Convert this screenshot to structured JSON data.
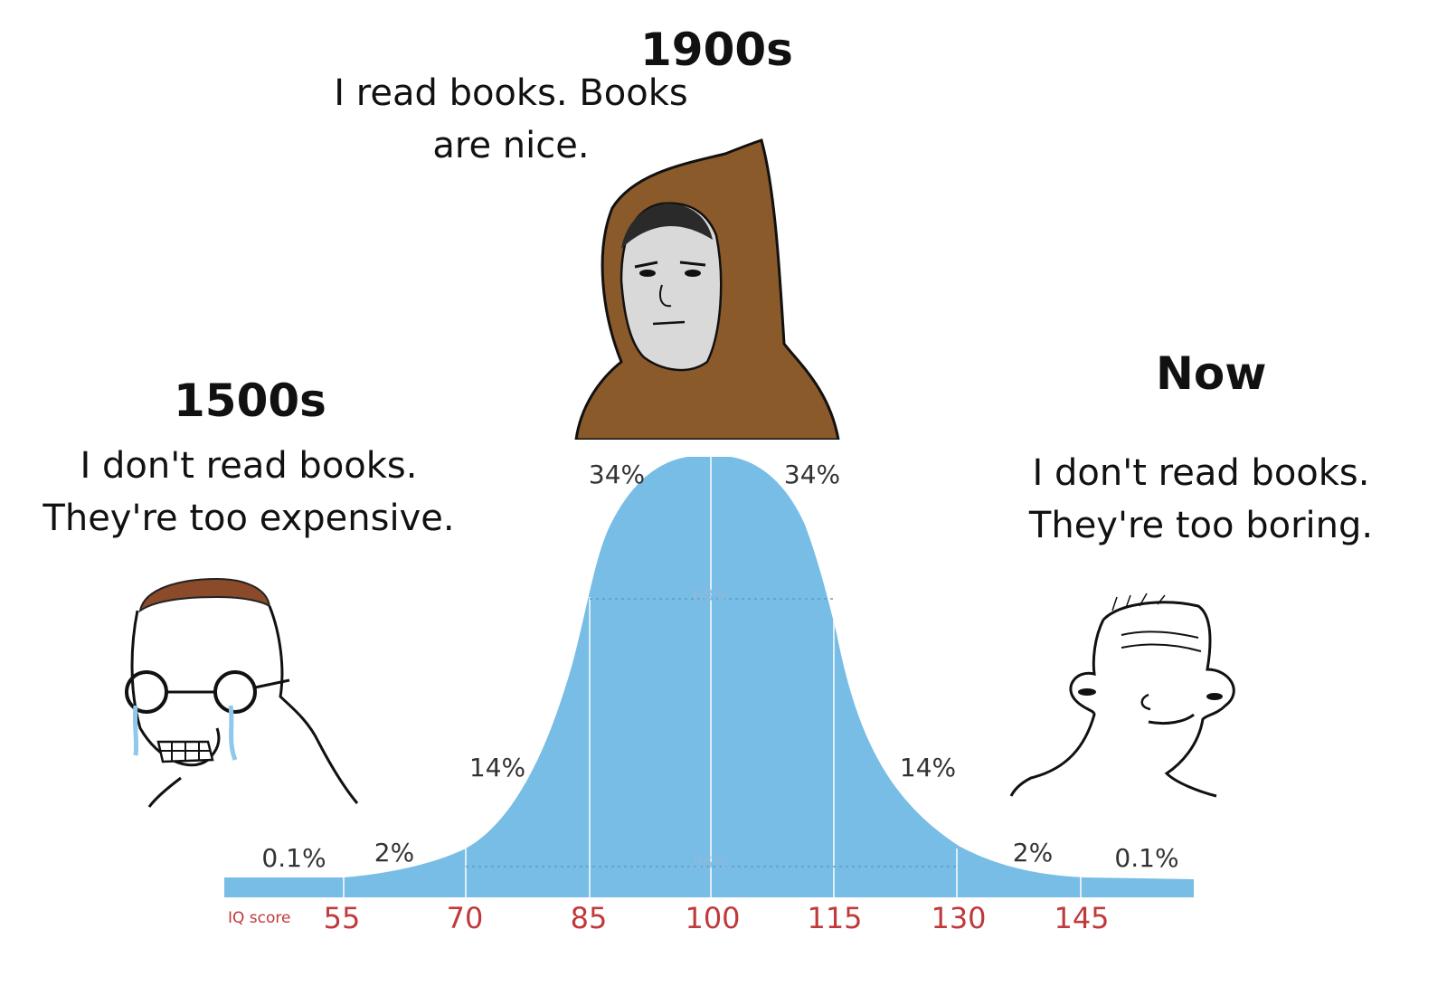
{
  "panels": {
    "left": {
      "era": "1500s",
      "quote_line1": "I don't read books.",
      "quote_line2": "They're too expensive."
    },
    "middle": {
      "era": "1900s",
      "quote_line1": "I read books. Books",
      "quote_line2": "are nice."
    },
    "right": {
      "era": "Now",
      "quote_line1": "I don't read books.",
      "quote_line2": "They're too boring."
    }
  },
  "curve": {
    "axis_label": "IQ score",
    "ticks": [
      "55",
      "70",
      "85",
      "100",
      "115",
      "130",
      "145"
    ],
    "percents": {
      "far_left": "0.1%",
      "left_2": "2%",
      "left_14": "14%",
      "left_34": "34%",
      "right_34": "34%",
      "right_14": "14%",
      "right_2": "2%",
      "far_right": "0.1%",
      "center_68": "68%",
      "center_95": "95%"
    }
  },
  "colors": {
    "curve_fill": "#77bde6",
    "tick_color": "#c0393b",
    "hood": "#8b5a2b",
    "hair": "#8b4a2a",
    "tears": "#8fc8ea"
  },
  "icons": {
    "left": "crying-nerd-wojak-icon",
    "middle": "hooded-wojak-icon",
    "right": "smug-wojak-icon"
  }
}
